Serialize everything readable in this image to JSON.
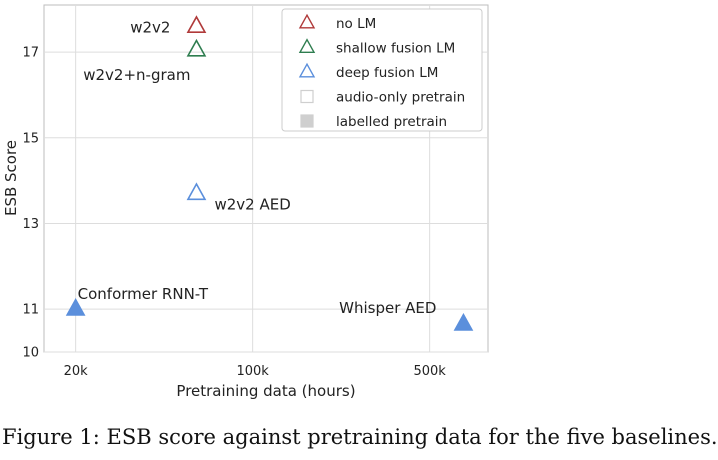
{
  "chart_data": {
    "type": "scatter",
    "xlabel": "Pretraining data (hours)",
    "ylabel": "ESB Score",
    "x_scale": "log",
    "xlim": [
      15000,
      850000
    ],
    "ylim": [
      10,
      18.1
    ],
    "x_ticks": [
      {
        "value": 20000,
        "label": "20k"
      },
      {
        "value": 100000,
        "label": "100k"
      },
      {
        "value": 500000,
        "label": "500k"
      }
    ],
    "y_ticks": [
      {
        "value": 10,
        "label": "10"
      },
      {
        "value": 11,
        "label": "11"
      },
      {
        "value": 13,
        "label": "13"
      },
      {
        "value": 15,
        "label": "15"
      },
      {
        "value": 17,
        "label": "17"
      }
    ],
    "grid": true,
    "legend_position": "top-right",
    "legend": [
      {
        "label": "no LM",
        "marker": "triangle-open",
        "color": "#b03a3a"
      },
      {
        "label": "shallow fusion LM",
        "marker": "triangle-open",
        "color": "#2e7d4f"
      },
      {
        "label": "deep fusion LM",
        "marker": "triangle-open",
        "color": "#5b8fdc"
      },
      {
        "label": "audio-only pretrain",
        "marker": "square-open",
        "color": "#cfcfcf"
      },
      {
        "label": "labelled pretrain",
        "marker": "square-filled",
        "color": "#cfcfcf"
      }
    ],
    "points": [
      {
        "label": "w2v2",
        "x": 60000,
        "y": 17.6,
        "lm": "no LM",
        "pretrain": "audio-only pretrain",
        "color": "#b03a3a",
        "filled": false
      },
      {
        "label": "w2v2+n-gram",
        "x": 60000,
        "y": 17.05,
        "lm": "shallow fusion LM",
        "pretrain": "audio-only pretrain",
        "color": "#2e7d4f",
        "filled": false
      },
      {
        "label": "w2v2 AED",
        "x": 60000,
        "y": 13.7,
        "lm": "deep fusion LM",
        "pretrain": "audio-only pretrain",
        "color": "#5b8fdc",
        "filled": false
      },
      {
        "label": "Conformer RNN-T",
        "x": 20000,
        "y": 11.0,
        "lm": "deep fusion LM",
        "pretrain": "labelled pretrain",
        "color": "#5b8fdc",
        "filled": true
      },
      {
        "label": "Whisper AED",
        "x": 680000,
        "y": 10.65,
        "lm": "deep fusion LM",
        "pretrain": "labelled pretrain",
        "color": "#5b8fdc",
        "filled": true
      }
    ]
  },
  "caption": "Figure 1: ESB score against pretraining data for the five baselines."
}
